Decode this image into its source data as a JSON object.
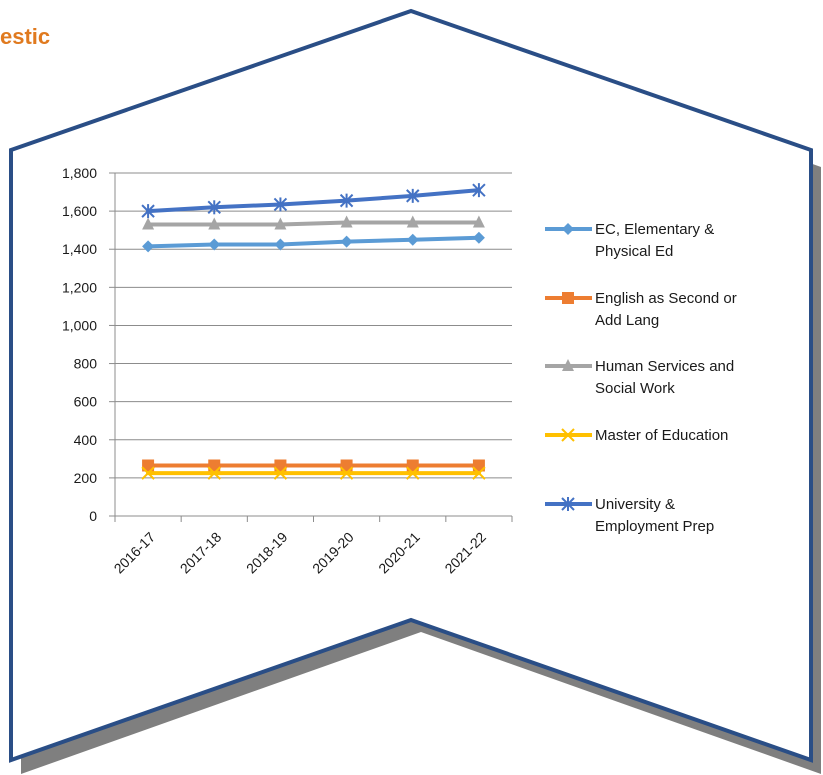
{
  "page": {
    "title": "estic"
  },
  "frame": {
    "border_color": "#2a4e86",
    "shadow_color": "#7f7f7f"
  },
  "chart_data": {
    "type": "line",
    "categories": [
      "2016-17",
      "2017-18",
      "2018-19",
      "2019-20",
      "2020-21",
      "2021-22"
    ],
    "ylim": [
      0,
      1800
    ],
    "yticks": [
      0,
      200,
      400,
      600,
      800,
      1000,
      1200,
      1400,
      1600,
      1800
    ],
    "ytick_labels": [
      "0",
      "200",
      "400",
      "600",
      "800",
      "1,000",
      "1,200",
      "1,400",
      "1,600",
      "1,800"
    ],
    "grid": true,
    "legend_position": "right",
    "series": [
      {
        "name": "EC, Elementary & Physical Ed",
        "name_lines": [
          "EC, Elementary &",
          "Physical Ed"
        ],
        "values": [
          1415,
          1425,
          1425,
          1440,
          1450,
          1460
        ],
        "color": "#5b9bd5",
        "marker": "diamond"
      },
      {
        "name": "English as Second or Add Lang",
        "name_lines": [
          "English as Second or",
          "Add Lang"
        ],
        "values": [
          265,
          265,
          265,
          265,
          265,
          265
        ],
        "color": "#ed7d31",
        "marker": "square"
      },
      {
        "name": "Human Services and Social Work",
        "name_lines": [
          "Human Services and",
          "Social Work"
        ],
        "values": [
          1530,
          1530,
          1530,
          1540,
          1540,
          1540
        ],
        "color": "#a5a5a5",
        "marker": "triangle"
      },
      {
        "name": "Master of Education",
        "name_lines": [
          "Master of Education"
        ],
        "values": [
          225,
          225,
          225,
          225,
          225,
          225
        ],
        "color": "#ffc000",
        "marker": "x"
      },
      {
        "name": "University & Employment Prep",
        "name_lines": [
          "University &",
          "Employment Prep"
        ],
        "values": [
          1600,
          1620,
          1635,
          1655,
          1680,
          1710
        ],
        "color": "#4472c4",
        "marker": "star"
      }
    ]
  }
}
